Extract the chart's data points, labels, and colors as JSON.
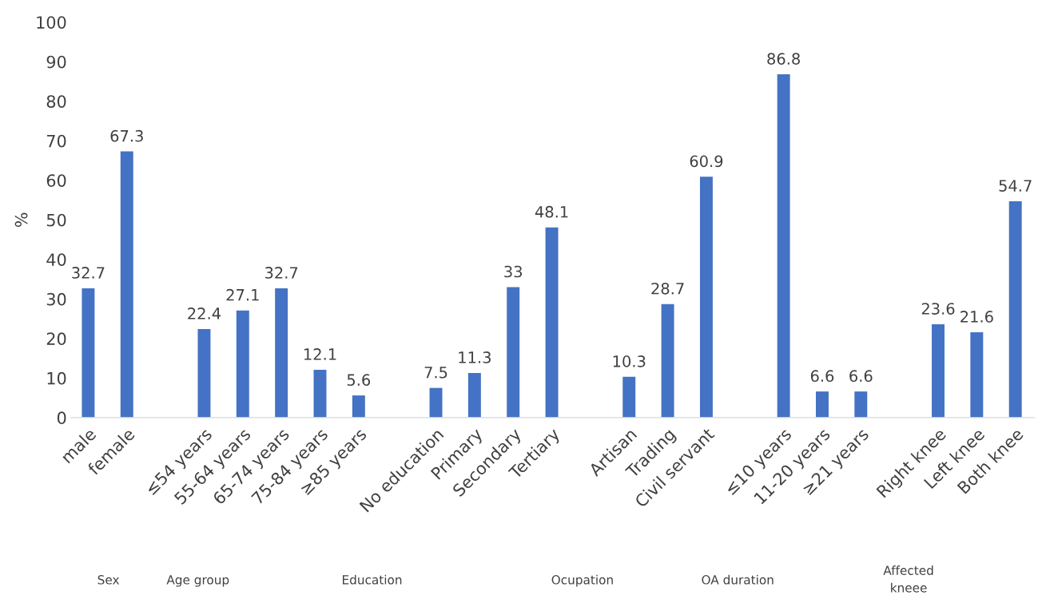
{
  "chart_data": {
    "type": "bar",
    "ylabel": "%",
    "categories": [
      "male",
      "female",
      null,
      "≤54 years",
      "55-64 years",
      "65-74 years",
      "75-84 years",
      "≥85 years",
      null,
      "No education",
      "Primary",
      "Secondary",
      "Tertiary",
      null,
      "Artisan",
      "Trading",
      "Civil servant",
      null,
      "≤10 years",
      "11-20 years",
      "≥21 years",
      null,
      "Right knee",
      "Left knee",
      "Both knee"
    ],
    "values": [
      32.7,
      67.3,
      null,
      22.4,
      27.1,
      32.7,
      12.1,
      5.6,
      null,
      7.5,
      11.3,
      33,
      48.1,
      null,
      10.3,
      28.7,
      60.9,
      null,
      86.8,
      6.6,
      6.6,
      null,
      23.6,
      21.6,
      54.7
    ],
    "color": "#4472c4",
    "ylim": [
      0,
      100
    ],
    "yticks": [
      0,
      10,
      20,
      30,
      40,
      50,
      60,
      70,
      80,
      90,
      100
    ],
    "data_labels": true,
    "annotations": [
      "Sex",
      "Age group",
      "Education",
      "Ocupation",
      "OA duration",
      "Affected\nkneee"
    ]
  }
}
